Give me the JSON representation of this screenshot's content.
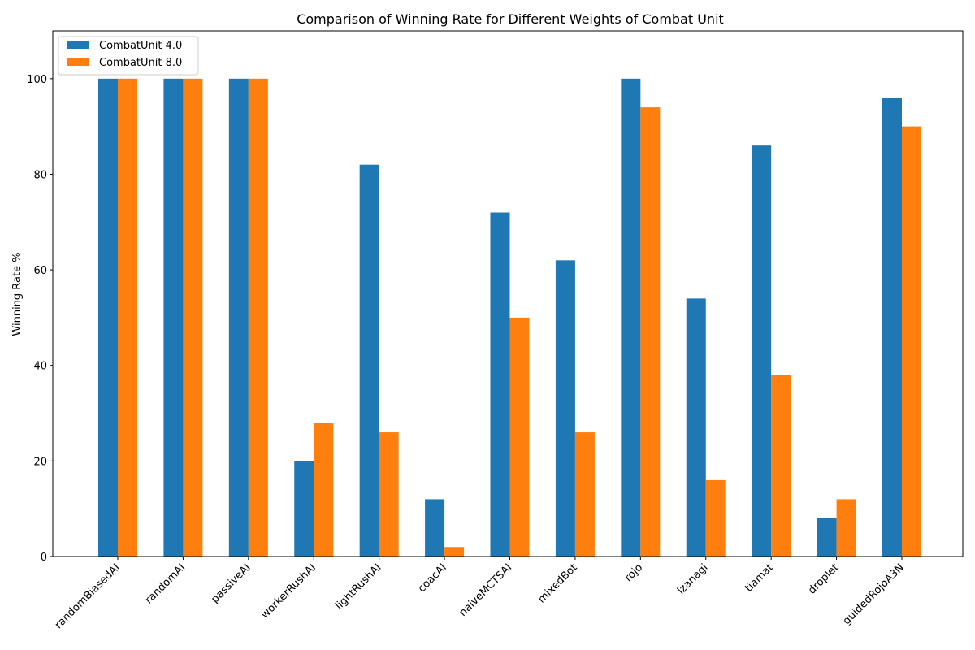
{
  "chart_data": {
    "type": "bar",
    "title": "Comparison of Winning Rate for Different Weights of Combat Unit",
    "xlabel": "",
    "ylabel": "Winning Rate %",
    "ylim": [
      0,
      110
    ],
    "yticks": [
      0,
      20,
      40,
      60,
      80,
      100
    ],
    "categories": [
      "randomBiasedAI",
      "randomAI",
      "passiveAI",
      "workerRushAI",
      "lightRushAI",
      "coacAI",
      "naiveMCTSAI",
      "mixedBot",
      "rojo",
      "izanagi",
      "tiamat",
      "droplet",
      "guidedRojoA3N"
    ],
    "series": [
      {
        "name": "CombatUnit 4.0",
        "color": "#1f77b4",
        "values": [
          100,
          100,
          100,
          20,
          82,
          12,
          72,
          62,
          100,
          54,
          86,
          8,
          96
        ]
      },
      {
        "name": "CombatUnit 8.0",
        "color": "#ff7f0e",
        "values": [
          100,
          100,
          100,
          28,
          26,
          2,
          50,
          26,
          94,
          16,
          38,
          12,
          90
        ]
      }
    ],
    "legend_position": "top-left",
    "grid": false
  }
}
